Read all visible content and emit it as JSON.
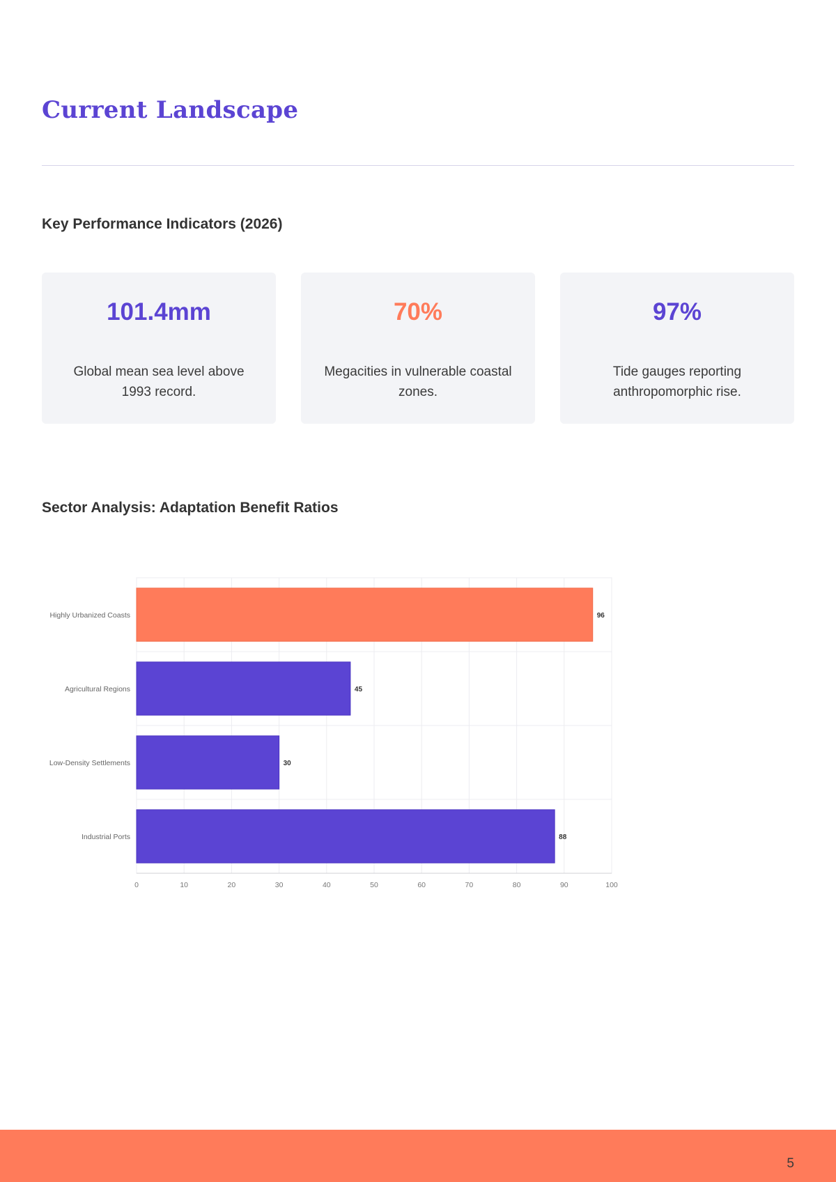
{
  "title": "Current Landscape",
  "kpi_heading": "Key Performance Indicators (2026)",
  "kpis": [
    {
      "value": "101.4mm",
      "description": "Global mean sea level above 1993 record.",
      "color": "#5b44d3"
    },
    {
      "value": "70%",
      "description": "Megacities in vulnerable coastal zones.",
      "color": "#ff7b5a"
    },
    {
      "value": "97%",
      "description": "Tide gauges reporting anthropomorphic rise.",
      "color": "#5b44d3"
    }
  ],
  "chart_heading": "Sector Analysis: Adaptation Benefit Ratios",
  "chart_data": {
    "type": "bar",
    "orientation": "horizontal",
    "categories": [
      "Highly Urbanized Coasts",
      "Agricultural Regions",
      "Low-Density Settlements",
      "Industrial Ports"
    ],
    "values": [
      96,
      45,
      30,
      88
    ],
    "colors": [
      "#ff7b5a",
      "#5b44d3",
      "#5b44d3",
      "#5b44d3"
    ],
    "xlim": [
      0,
      100
    ],
    "xticks": [
      0,
      10,
      20,
      30,
      40,
      50,
      60,
      70,
      80,
      90,
      100
    ],
    "grid": true,
    "data_labels": true
  },
  "page_number": "5",
  "colors": {
    "accent": "#5b44d3",
    "highlight": "#ff7b5a",
    "card_bg": "#f3f4f7"
  }
}
